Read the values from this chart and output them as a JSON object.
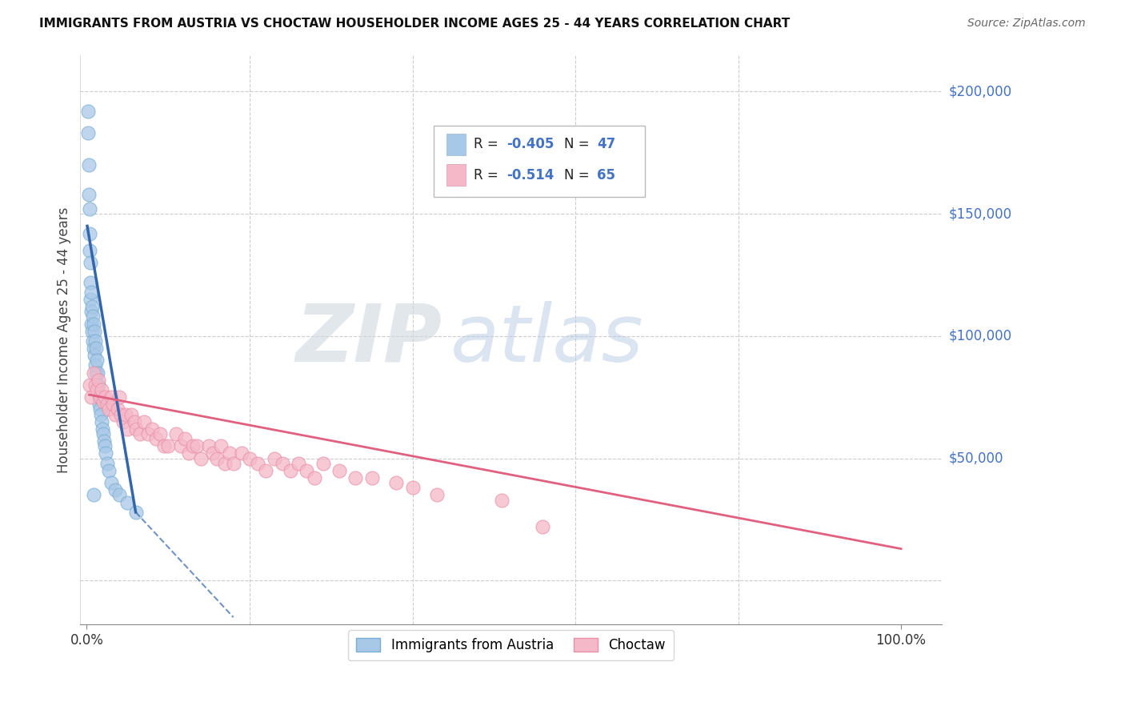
{
  "title": "IMMIGRANTS FROM AUSTRIA VS CHOCTAW HOUSEHOLDER INCOME AGES 25 - 44 YEARS CORRELATION CHART",
  "source": "Source: ZipAtlas.com",
  "ylabel": "Householder Income Ages 25 - 44 years",
  "watermark_zip": "ZIP",
  "watermark_atlas": "atlas",
  "legend_label1": "Immigrants from Austria",
  "legend_label2": "Choctaw",
  "r1": -0.405,
  "n1": 47,
  "r2": -0.514,
  "n2": 65,
  "color_blue": "#a8c8e8",
  "color_blue_dark": "#7aaed0",
  "color_blue_line": "#3366aa",
  "color_pink": "#f5b8c8",
  "color_pink_dark": "#e890a8",
  "color_pink_line": "#e06080",
  "yticks": [
    0,
    50000,
    100000,
    150000,
    200000
  ],
  "ytick_labels": [
    "",
    "$50,000",
    "$100,000",
    "$150,000",
    "$200,000"
  ],
  "ymax": 215000,
  "ymin": -18000,
  "xmin": -0.008,
  "xmax": 1.05,
  "austria_x": [
    0.001,
    0.001,
    0.002,
    0.002,
    0.003,
    0.003,
    0.003,
    0.004,
    0.004,
    0.004,
    0.005,
    0.005,
    0.005,
    0.006,
    0.006,
    0.007,
    0.007,
    0.008,
    0.008,
    0.009,
    0.009,
    0.01,
    0.01,
    0.011,
    0.011,
    0.012,
    0.012,
    0.013,
    0.014,
    0.015,
    0.015,
    0.016,
    0.017,
    0.018,
    0.019,
    0.02,
    0.021,
    0.022,
    0.023,
    0.025,
    0.027,
    0.03,
    0.035,
    0.04,
    0.05,
    0.06,
    0.008
  ],
  "austria_y": [
    192000,
    183000,
    170000,
    158000,
    152000,
    142000,
    135000,
    130000,
    122000,
    115000,
    118000,
    110000,
    105000,
    112000,
    102000,
    108000,
    98000,
    105000,
    95000,
    102000,
    92000,
    98000,
    88000,
    95000,
    85000,
    90000,
    80000,
    85000,
    80000,
    75000,
    72000,
    70000,
    68000,
    65000,
    62000,
    60000,
    57000,
    55000,
    52000,
    48000,
    45000,
    40000,
    37000,
    35000,
    32000,
    28000,
    35000
  ],
  "choctaw_x": [
    0.003,
    0.005,
    0.008,
    0.01,
    0.012,
    0.014,
    0.016,
    0.018,
    0.02,
    0.022,
    0.025,
    0.027,
    0.03,
    0.032,
    0.035,
    0.038,
    0.04,
    0.042,
    0.045,
    0.048,
    0.05,
    0.055,
    0.058,
    0.06,
    0.065,
    0.07,
    0.075,
    0.08,
    0.085,
    0.09,
    0.095,
    0.1,
    0.11,
    0.115,
    0.12,
    0.125,
    0.13,
    0.135,
    0.14,
    0.15,
    0.155,
    0.16,
    0.165,
    0.17,
    0.175,
    0.18,
    0.19,
    0.2,
    0.21,
    0.22,
    0.23,
    0.24,
    0.25,
    0.26,
    0.27,
    0.28,
    0.29,
    0.31,
    0.33,
    0.35,
    0.38,
    0.4,
    0.43,
    0.51,
    0.56
  ],
  "choctaw_y": [
    80000,
    75000,
    85000,
    80000,
    78000,
    82000,
    75000,
    78000,
    73000,
    75000,
    72000,
    70000,
    75000,
    72000,
    68000,
    70000,
    75000,
    68000,
    65000,
    68000,
    62000,
    68000,
    65000,
    62000,
    60000,
    65000,
    60000,
    62000,
    58000,
    60000,
    55000,
    55000,
    60000,
    55000,
    58000,
    52000,
    55000,
    55000,
    50000,
    55000,
    52000,
    50000,
    55000,
    48000,
    52000,
    48000,
    52000,
    50000,
    48000,
    45000,
    50000,
    48000,
    45000,
    48000,
    45000,
    42000,
    48000,
    45000,
    42000,
    42000,
    40000,
    38000,
    35000,
    33000,
    22000
  ],
  "blue_line_x0": 0.0005,
  "blue_line_x1": 0.06,
  "blue_line_xdash_end": 0.18,
  "pink_line_x0": 0.003,
  "pink_line_x1": 1.0,
  "blue_line_y0": 145000,
  "blue_line_y1": 28000,
  "blue_line_ydash": -15000,
  "pink_line_y0": 76000,
  "pink_line_y1": 13000
}
